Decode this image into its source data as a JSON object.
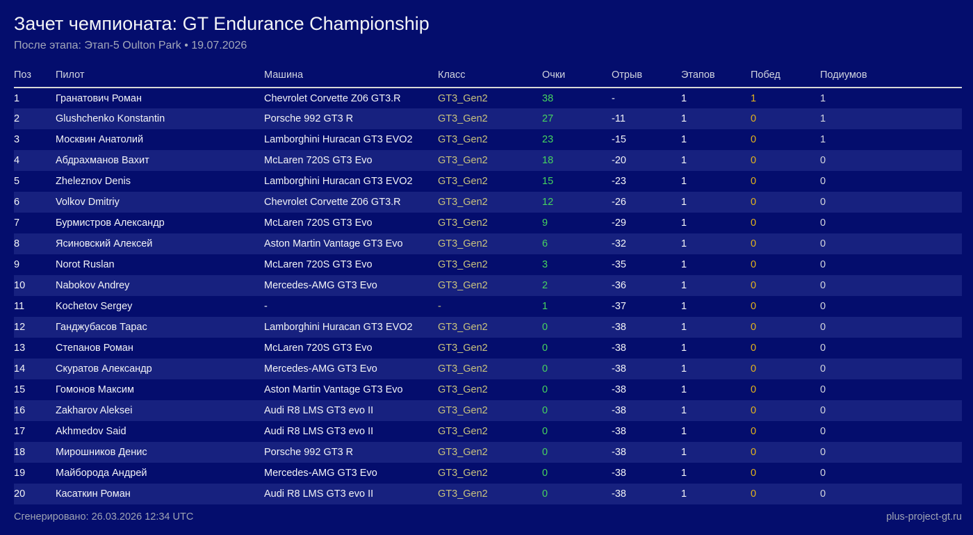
{
  "page": {
    "title": "Зачет чемпионата: GT Endurance Championship",
    "subtitle": "После этапа: Этап-5 Oulton Park • 19.07.2026"
  },
  "table": {
    "columns": [
      {
        "key": "pos",
        "label": "Поз"
      },
      {
        "key": "pilot",
        "label": "Пилот"
      },
      {
        "key": "car",
        "label": "Машина"
      },
      {
        "key": "cls",
        "label": "Класс"
      },
      {
        "key": "points",
        "label": "Очки"
      },
      {
        "key": "gap",
        "label": "Отрыв"
      },
      {
        "key": "stages",
        "label": "Этапов"
      },
      {
        "key": "wins",
        "label": "Побед"
      },
      {
        "key": "podiums",
        "label": "Подиумов"
      }
    ],
    "rows": [
      {
        "pos": "1",
        "pilot": "Гранатович Роман",
        "car": "Chevrolet Corvette Z06 GT3.R",
        "cls": "GT3_Gen2",
        "points": "38",
        "gap": "-",
        "stages": "1",
        "wins": "1",
        "podiums": "1"
      },
      {
        "pos": "2",
        "pilot": "Glushchenko Konstantin",
        "car": "Porsche 992 GT3 R",
        "cls": "GT3_Gen2",
        "points": "27",
        "gap": "-11",
        "stages": "1",
        "wins": "0",
        "podiums": "1"
      },
      {
        "pos": "3",
        "pilot": "Москвин Анатолий",
        "car": "Lamborghini Huracan GT3 EVO2",
        "cls": "GT3_Gen2",
        "points": "23",
        "gap": "-15",
        "stages": "1",
        "wins": "0",
        "podiums": "1"
      },
      {
        "pos": "4",
        "pilot": "Абдрахманов Вахит",
        "car": "McLaren 720S GT3 Evo",
        "cls": "GT3_Gen2",
        "points": "18",
        "gap": "-20",
        "stages": "1",
        "wins": "0",
        "podiums": "0"
      },
      {
        "pos": "5",
        "pilot": "Zheleznov Denis",
        "car": "Lamborghini Huracan GT3 EVO2",
        "cls": "GT3_Gen2",
        "points": "15",
        "gap": "-23",
        "stages": "1",
        "wins": "0",
        "podiums": "0"
      },
      {
        "pos": "6",
        "pilot": "Volkov Dmitriy",
        "car": "Chevrolet Corvette Z06 GT3.R",
        "cls": "GT3_Gen2",
        "points": "12",
        "gap": "-26",
        "stages": "1",
        "wins": "0",
        "podiums": "0"
      },
      {
        "pos": "7",
        "pilot": "Бурмистров Александр",
        "car": "McLaren 720S GT3 Evo",
        "cls": "GT3_Gen2",
        "points": "9",
        "gap": "-29",
        "stages": "1",
        "wins": "0",
        "podiums": "0"
      },
      {
        "pos": "8",
        "pilot": "Ясиновский Алексей",
        "car": "Aston Martin Vantage GT3 Evo",
        "cls": "GT3_Gen2",
        "points": "6",
        "gap": "-32",
        "stages": "1",
        "wins": "0",
        "podiums": "0"
      },
      {
        "pos": "9",
        "pilot": "Norot Ruslan",
        "car": "McLaren 720S GT3 Evo",
        "cls": "GT3_Gen2",
        "points": "3",
        "gap": "-35",
        "stages": "1",
        "wins": "0",
        "podiums": "0"
      },
      {
        "pos": "10",
        "pilot": "Nabokov Andrey",
        "car": "Mercedes-AMG GT3 Evo",
        "cls": "GT3_Gen2",
        "points": "2",
        "gap": "-36",
        "stages": "1",
        "wins": "0",
        "podiums": "0"
      },
      {
        "pos": "11",
        "pilot": "Kochetov Sergey",
        "car": "-",
        "cls": "-",
        "points": "1",
        "gap": "-37",
        "stages": "1",
        "wins": "0",
        "podiums": "0"
      },
      {
        "pos": "12",
        "pilot": "Ганджубасов Тарас",
        "car": "Lamborghini Huracan GT3 EVO2",
        "cls": "GT3_Gen2",
        "points": "0",
        "gap": "-38",
        "stages": "1",
        "wins": "0",
        "podiums": "0"
      },
      {
        "pos": "13",
        "pilot": "Степанов Роман",
        "car": "McLaren 720S GT3 Evo",
        "cls": "GT3_Gen2",
        "points": "0",
        "gap": "-38",
        "stages": "1",
        "wins": "0",
        "podiums": "0"
      },
      {
        "pos": "14",
        "pilot": "Скуратов Александр",
        "car": "Mercedes-AMG GT3 Evo",
        "cls": "GT3_Gen2",
        "points": "0",
        "gap": "-38",
        "stages": "1",
        "wins": "0",
        "podiums": "0"
      },
      {
        "pos": "15",
        "pilot": "Гомонов Максим",
        "car": "Aston Martin Vantage GT3 Evo",
        "cls": "GT3_Gen2",
        "points": "0",
        "gap": "-38",
        "stages": "1",
        "wins": "0",
        "podiums": "0"
      },
      {
        "pos": "16",
        "pilot": "Zakharov Aleksei",
        "car": "Audi R8 LMS GT3 evo II",
        "cls": "GT3_Gen2",
        "points": "0",
        "gap": "-38",
        "stages": "1",
        "wins": "0",
        "podiums": "0"
      },
      {
        "pos": "17",
        "pilot": "Akhmedov Said",
        "car": "Audi R8 LMS GT3 evo II",
        "cls": "GT3_Gen2",
        "points": "0",
        "gap": "-38",
        "stages": "1",
        "wins": "0",
        "podiums": "0"
      },
      {
        "pos": "18",
        "pilot": "Мирошников Денис",
        "car": "Porsche 992 GT3 R",
        "cls": "GT3_Gen2",
        "points": "0",
        "gap": "-38",
        "stages": "1",
        "wins": "0",
        "podiums": "0"
      },
      {
        "pos": "19",
        "pilot": "Майборода Андрей",
        "car": "Mercedes-AMG GT3 Evo",
        "cls": "GT3_Gen2",
        "points": "0",
        "gap": "-38",
        "stages": "1",
        "wins": "0",
        "podiums": "0"
      },
      {
        "pos": "20",
        "pilot": "Касаткин Роман",
        "car": "Audi R8 LMS GT3 evo II",
        "cls": "GT3_Gen2",
        "points": "0",
        "gap": "-38",
        "stages": "1",
        "wins": "0",
        "podiums": "0"
      }
    ]
  },
  "footer": {
    "generated": "Сгенерировано: 26.03.2026 12:34 UTC",
    "site": "plus-project-gt.ru"
  },
  "colors": {
    "background": "#040d6d",
    "row_stripe": "#17217f",
    "header_rule": "#d8d8d8",
    "header_text": "#d2d5df",
    "text_primary": "#f2f3f6",
    "text_muted": "#a3a8ba",
    "class_accent": "#c9c27e",
    "points_green": "#46d35f",
    "wins_gold": "#e4b41c",
    "podiums_gray": "#d3d6de",
    "footer_gray": "#9fa4b4"
  }
}
